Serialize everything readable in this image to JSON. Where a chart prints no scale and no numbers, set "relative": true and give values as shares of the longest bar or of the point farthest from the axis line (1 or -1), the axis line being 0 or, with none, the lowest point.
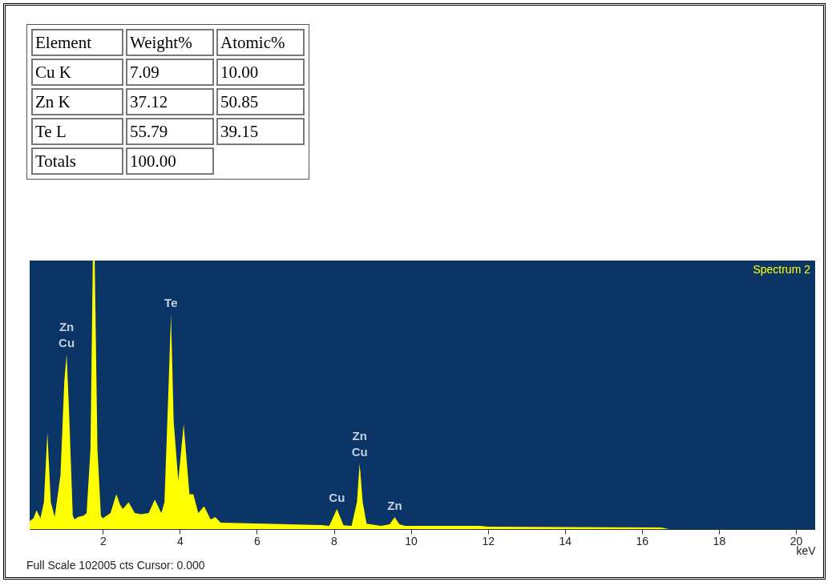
{
  "chart_data": [
    {
      "type": "other",
      "annotations": [
        "Element",
        "Weight%",
        "Atomic%",
        "Cu K",
        "7.09",
        "10.00",
        "Zn K",
        "37.12",
        "50.85",
        "Te L",
        "55.79",
        "39.15",
        "Totals",
        "100.00"
      ]
    },
    {
      "type": "area",
      "relative": true,
      "xlabel": "keV",
      "legend": "top right",
      "xlim": [
        0.1,
        20.5
      ],
      "xticks": [
        2,
        4,
        6,
        8,
        10,
        12,
        14,
        16,
        18,
        20
      ],
      "x": [
        0.1,
        0.2,
        0.28,
        0.38,
        0.47,
        0.56,
        0.65,
        0.75,
        0.9,
        1.0,
        1.06,
        1.12,
        1.22,
        1.27,
        1.35,
        1.5,
        1.58,
        1.68,
        1.74,
        1.79,
        1.86,
        1.95,
        2.0,
        2.2,
        2.35,
        2.45,
        2.52,
        2.67,
        2.83,
        3.0,
        3.19,
        3.35,
        3.52,
        3.6,
        3.7,
        3.77,
        3.84,
        3.96,
        4.1,
        4.18,
        4.25,
        4.35,
        4.48,
        4.63,
        4.8,
        4.92,
        5.06,
        6.2,
        7.67,
        7.88,
        8.08,
        8.25,
        8.46,
        8.6,
        8.67,
        8.75,
        8.85,
        9.23,
        9.45,
        9.58,
        9.7,
        9.85,
        11.8,
        12.0,
        16.5,
        16.7
      ],
      "series": [
        {
          "name": "Spectrum 2",
          "color": "#ffff00",
          "values": [
            0.03,
            0.04,
            0.07,
            0.04,
            0.1,
            0.36,
            0.1,
            0.045,
            0.2,
            0.55,
            0.65,
            0.45,
            0.05,
            0.036,
            0.045,
            0.05,
            0.06,
            0.3,
            1.0,
            1.0,
            0.3,
            0.05,
            0.04,
            0.06,
            0.13,
            0.09,
            0.075,
            0.1,
            0.06,
            0.055,
            0.06,
            0.11,
            0.06,
            0.1,
            0.5,
            0.8,
            0.4,
            0.18,
            0.39,
            0.25,
            0.13,
            0.13,
            0.06,
            0.085,
            0.036,
            0.045,
            0.024,
            0.02,
            0.015,
            0.012,
            0.075,
            0.014,
            0.012,
            0.1,
            0.245,
            0.1,
            0.02,
            0.012,
            0.018,
            0.045,
            0.018,
            0.012,
            0.012,
            0.009,
            0.006,
            0.0
          ]
        }
      ],
      "annotations": [
        {
          "text": "Zn",
          "x": 1.06,
          "y": 0.65
        },
        {
          "text": "Cu",
          "x": 1.06,
          "y": 0.65
        },
        {
          "text": "Te",
          "x": 3.77,
          "y": 0.8
        },
        {
          "text": "Zn",
          "x": 8.67,
          "y": 0.245
        },
        {
          "text": "Cu",
          "x": 8.67,
          "y": 0.245
        },
        {
          "text": "Cu",
          "x": 8.08,
          "y": 0.075
        },
        {
          "text": "Zn",
          "x": 9.58,
          "y": 0.045
        },
        "Full Scale 102005 cts Cursor: 0.000"
      ]
    }
  ]
}
